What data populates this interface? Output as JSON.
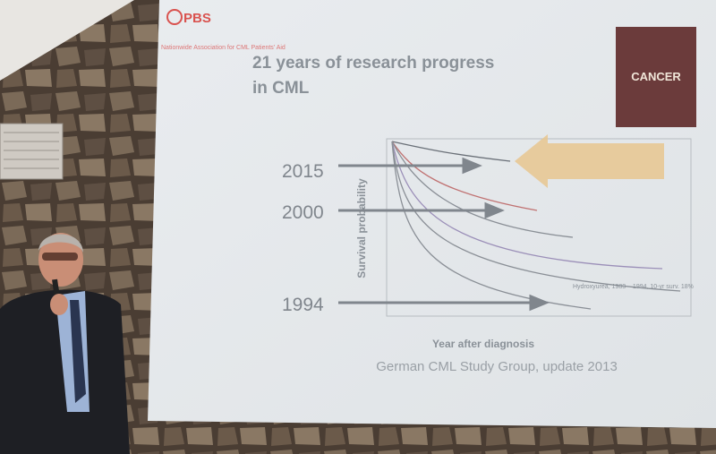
{
  "header": {
    "logo": "PBS",
    "organization": "Nationwide Association for CML Patients' Aid"
  },
  "slide": {
    "title_line_1": "21 years of research progress",
    "title_line_2": "in CML",
    "years": [
      "2015",
      "2000",
      "1994"
    ],
    "y_axis_label": "Survival probability",
    "x_axis_label": "Year after diagnosis",
    "curve_label": "Hydroxyurea, 1983 – 1994, 10-yr surv. 18%",
    "source": "German CML Study Group, update 2013"
  }
}
